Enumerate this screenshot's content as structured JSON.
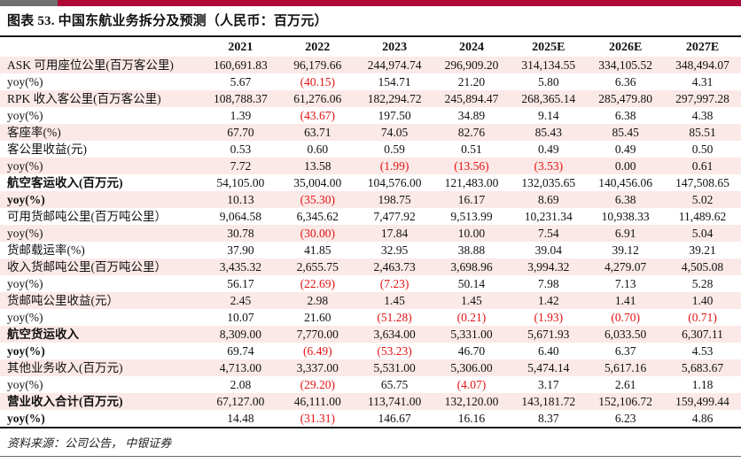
{
  "title": "图表 53. 中国东航业务拆分及预测（人民币：百万元）",
  "colors": {
    "bar_gray": "#6f6f6f",
    "bar_red": "#b00938",
    "stripe_pink": "#fbe9e7",
    "negative_red": "#e31212",
    "rule_black": "#161616"
  },
  "table": {
    "columns": [
      "2021",
      "2022",
      "2023",
      "2024",
      "2025E",
      "2026E",
      "2027E"
    ],
    "rows": [
      {
        "label": "ASK 可用座位公里(百万客公里)",
        "bold": false,
        "values": [
          "160,691.83",
          "96,179.66",
          "244,974.74",
          "296,909.20",
          "314,134.55",
          "334,105.52",
          "348,494.07"
        ]
      },
      {
        "label": "yoy(%)",
        "bold": false,
        "values": [
          "5.67",
          "(40.15)",
          "154.71",
          "21.20",
          "5.80",
          "6.36",
          "4.31"
        ]
      },
      {
        "label": "RPK 收入客公里(百万客公里)",
        "bold": false,
        "values": [
          "108,788.37",
          "61,276.06",
          "182,294.72",
          "245,894.47",
          "268,365.14",
          "285,479.80",
          "297,997.28"
        ]
      },
      {
        "label": "yoy(%)",
        "bold": false,
        "values": [
          "1.39",
          "(43.67)",
          "197.50",
          "34.89",
          "9.14",
          "6.38",
          "4.38"
        ]
      },
      {
        "label": "客座率(%)",
        "bold": false,
        "values": [
          "67.70",
          "63.71",
          "74.05",
          "82.76",
          "85.43",
          "85.45",
          "85.51"
        ]
      },
      {
        "label": "客公里收益(元)",
        "bold": false,
        "values": [
          "0.53",
          "0.60",
          "0.59",
          "0.51",
          "0.49",
          "0.49",
          "0.50"
        ]
      },
      {
        "label": "yoy(%)",
        "bold": false,
        "values": [
          "7.72",
          "13.58",
          "(1.99)",
          "(13.56)",
          "(3.53)",
          "0.00",
          "0.61"
        ]
      },
      {
        "label": "航空客运收入(百万元)",
        "bold": true,
        "values": [
          "54,105.00",
          "35,004.00",
          "104,576.00",
          "121,483.00",
          "132,035.65",
          "140,456.06",
          "147,508.65"
        ]
      },
      {
        "label": "yoy(%)",
        "bold": true,
        "values": [
          "10.13",
          "(35.30)",
          "198.75",
          "16.17",
          "8.69",
          "6.38",
          "5.02"
        ]
      },
      {
        "label": "可用货邮吨公里(百万吨公里）",
        "bold": false,
        "values": [
          "9,064.58",
          "6,345.62",
          "7,477.92",
          "9,513.99",
          "10,231.34",
          "10,938.33",
          "11,489.62"
        ]
      },
      {
        "label": "yoy(%)",
        "bold": false,
        "values": [
          "30.78",
          "(30.00)",
          "17.84",
          "10.00",
          "7.54",
          "6.91",
          "5.04"
        ]
      },
      {
        "label": "货邮载运率(%)",
        "bold": false,
        "values": [
          "37.90",
          "41.85",
          "32.95",
          "38.88",
          "39.04",
          "39.12",
          "39.21"
        ]
      },
      {
        "label": "收入货邮吨公里(百万吨公里）",
        "bold": false,
        "values": [
          "3,435.32",
          "2,655.75",
          "2,463.73",
          "3,698.96",
          "3,994.32",
          "4,279.07",
          "4,505.08"
        ]
      },
      {
        "label": "yoy(%)",
        "bold": false,
        "values": [
          "56.17",
          "(22.69)",
          "(7.23)",
          "50.14",
          "7.98",
          "7.13",
          "5.28"
        ]
      },
      {
        "label": "货邮吨公里收益(元）",
        "bold": false,
        "values": [
          "2.45",
          "2.98",
          "1.45",
          "1.45",
          "1.42",
          "1.41",
          "1.40"
        ]
      },
      {
        "label": "yoy(%)",
        "bold": false,
        "values": [
          "10.07",
          "21.60",
          "(51.28)",
          "(0.21)",
          "(1.93)",
          "(0.70)",
          "(0.71)"
        ]
      },
      {
        "label": "航空货运收入",
        "bold": true,
        "values": [
          "8,309.00",
          "7,770.00",
          "3,634.00",
          "5,331.00",
          "5,671.93",
          "6,033.50",
          "6,307.11"
        ]
      },
      {
        "label": "yoy(%)",
        "bold": true,
        "values": [
          "69.74",
          "(6.49)",
          "(53.23)",
          "46.70",
          "6.40",
          "6.37",
          "4.53"
        ]
      },
      {
        "label": "其他业务收入(百万元)",
        "bold": false,
        "values": [
          "4,713.00",
          "3,337.00",
          "5,531.00",
          "5,306.00",
          "5,474.14",
          "5,617.16",
          "5,683.67"
        ]
      },
      {
        "label": "yoy(%)",
        "bold": false,
        "values": [
          "2.08",
          "(29.20)",
          "65.75",
          "(4.07)",
          "3.17",
          "2.61",
          "1.18"
        ]
      },
      {
        "label": "营业收入合计(百万元)",
        "bold": true,
        "values": [
          "67,127.00",
          "46,111.00",
          "113,741.00",
          "132,120.00",
          "143,181.72",
          "152,106.72",
          "159,499.44"
        ]
      },
      {
        "label": "yoy(%)",
        "bold": true,
        "values": [
          "14.48",
          "(31.31)",
          "146.67",
          "16.16",
          "8.37",
          "6.23",
          "4.86"
        ]
      }
    ]
  },
  "footer": {
    "source": "资料来源：公司公告， 中银证券"
  }
}
